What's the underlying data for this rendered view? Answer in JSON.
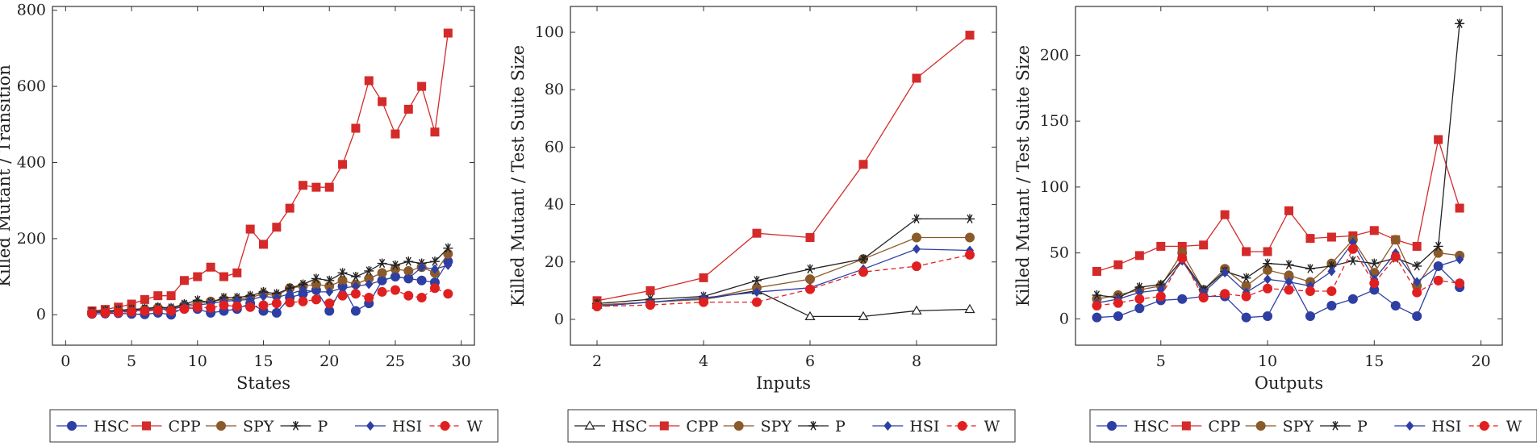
{
  "chart_data": [
    {
      "type": "line",
      "xlabel": "States",
      "ylabel": "Killed Mutant / Transition",
      "xlim": [
        -1,
        31
      ],
      "ylim": [
        -80,
        810
      ],
      "xticks": [
        0,
        5,
        10,
        15,
        20,
        25,
        30
      ],
      "yticks": [
        0,
        200,
        400,
        600,
        800
      ],
      "legend_position": "bottom",
      "series": [
        {
          "name": "HSC",
          "color": "#2E3FA3",
          "marker": "circle",
          "dash": "solid",
          "x": [
            2,
            3,
            4,
            5,
            6,
            7,
            8,
            9,
            10,
            11,
            12,
            13,
            14,
            15,
            16,
            17,
            18,
            19,
            20,
            21,
            22,
            23,
            24,
            25,
            26,
            27,
            28,
            29
          ],
          "y": [
            2,
            3,
            4,
            2,
            1,
            5,
            0,
            20,
            15,
            5,
            10,
            15,
            30,
            10,
            5,
            45,
            55,
            65,
            10,
            75,
            10,
            30,
            90,
            100,
            95,
            90,
            85,
            140
          ]
        },
        {
          "name": "CPP",
          "color": "#D42A2A",
          "marker": "square",
          "dash": "solid",
          "x": [
            2,
            3,
            4,
            5,
            6,
            7,
            8,
            9,
            10,
            11,
            12,
            13,
            14,
            15,
            16,
            17,
            18,
            19,
            20,
            21,
            22,
            23,
            24,
            25,
            26,
            27,
            28,
            29
          ],
          "y": [
            10,
            14,
            20,
            28,
            40,
            50,
            50,
            90,
            100,
            125,
            100,
            110,
            225,
            185,
            230,
            280,
            340,
            335,
            335,
            395,
            490,
            615,
            560,
            475,
            540,
            600,
            480,
            740
          ]
        },
        {
          "name": "SPY",
          "color": "#8B5A2B",
          "marker": "circle",
          "dash": "solid",
          "x": [
            2,
            3,
            4,
            5,
            6,
            7,
            8,
            9,
            10,
            11,
            12,
            13,
            14,
            15,
            16,
            17,
            18,
            19,
            20,
            21,
            22,
            23,
            24,
            25,
            26,
            27,
            28,
            29
          ],
          "y": [
            5,
            8,
            10,
            12,
            14,
            18,
            15,
            25,
            30,
            35,
            40,
            40,
            45,
            55,
            50,
            70,
            75,
            80,
            75,
            90,
            80,
            95,
            110,
            120,
            115,
            125,
            110,
            160
          ]
        },
        {
          "name": "P",
          "color": "#222222",
          "marker": "star",
          "dash": "solid",
          "x": [
            2,
            3,
            4,
            5,
            6,
            7,
            8,
            9,
            10,
            11,
            12,
            13,
            14,
            15,
            16,
            17,
            18,
            19,
            20,
            21,
            22,
            23,
            24,
            25,
            26,
            27,
            28,
            29
          ],
          "y": [
            8,
            10,
            12,
            14,
            16,
            20,
            18,
            28,
            38,
            32,
            45,
            45,
            50,
            60,
            55,
            70,
            80,
            95,
            90,
            110,
            100,
            115,
            135,
            130,
            140,
            135,
            140,
            175
          ]
        },
        {
          "name": "HSI",
          "color": "#2E3FA3",
          "marker": "diamond",
          "dash": "solid",
          "x": [
            2,
            3,
            4,
            5,
            6,
            7,
            8,
            9,
            10,
            11,
            12,
            13,
            14,
            15,
            16,
            17,
            18,
            19,
            20,
            21,
            22,
            23,
            24,
            25,
            26,
            27,
            28,
            29
          ],
          "y": [
            5,
            7,
            8,
            10,
            12,
            15,
            14,
            22,
            25,
            30,
            35,
            38,
            40,
            48,
            45,
            55,
            65,
            60,
            60,
            70,
            75,
            80,
            90,
            100,
            95,
            125,
            120,
            130
          ]
        },
        {
          "name": "W",
          "color": "#E02020",
          "marker": "circle",
          "dash": "dashed",
          "x": [
            2,
            3,
            4,
            5,
            6,
            7,
            8,
            9,
            10,
            11,
            12,
            13,
            14,
            15,
            16,
            17,
            18,
            19,
            20,
            21,
            22,
            23,
            24,
            25,
            26,
            27,
            28,
            29
          ],
          "y": [
            3,
            5,
            6,
            8,
            10,
            12,
            10,
            15,
            20,
            18,
            25,
            22,
            20,
            25,
            30,
            32,
            35,
            40,
            30,
            50,
            55,
            45,
            60,
            65,
            50,
            45,
            70,
            55
          ]
        }
      ]
    },
    {
      "type": "line",
      "xlabel": "Inputs",
      "ylabel": "Killed Mutant / Test Suite Size",
      "xlim": [
        1.5,
        9.5
      ],
      "ylim": [
        -9,
        109
      ],
      "xticks": [
        2,
        4,
        6,
        8
      ],
      "yticks": [
        0,
        20,
        40,
        60,
        80,
        100
      ],
      "legend_position": "bottom",
      "series": [
        {
          "name": "HSC",
          "color": "#222222",
          "marker": "triangle",
          "dash": "solid",
          "x": [
            2,
            3,
            4,
            5,
            6,
            7,
            8,
            9
          ],
          "y": [
            5,
            6,
            7,
            10,
            1,
            1,
            3,
            3.5
          ]
        },
        {
          "name": "CPP",
          "color": "#D42A2A",
          "marker": "square",
          "dash": "solid",
          "x": [
            2,
            3,
            4,
            5,
            6,
            7,
            8,
            9
          ],
          "y": [
            6.5,
            10,
            14.5,
            30,
            28.5,
            54,
            84,
            99
          ]
        },
        {
          "name": "SPY",
          "color": "#8B5A2B",
          "marker": "circle",
          "dash": "solid",
          "x": [
            2,
            3,
            4,
            5,
            6,
            7,
            8,
            9
          ],
          "y": [
            5,
            6,
            7,
            11,
            14,
            21,
            28.5,
            28.5
          ]
        },
        {
          "name": "P",
          "color": "#222222",
          "marker": "star",
          "dash": "solid",
          "x": [
            2,
            3,
            4,
            5,
            6,
            7,
            8,
            9
          ],
          "y": [
            5.5,
            7,
            8,
            13.5,
            17.5,
            21,
            35,
            35
          ]
        },
        {
          "name": "HSI",
          "color": "#2E3FA3",
          "marker": "diamond",
          "dash": "solid",
          "x": [
            2,
            3,
            4,
            5,
            6,
            7,
            8,
            9
          ],
          "y": [
            4.5,
            6,
            7.5,
            9.5,
            11,
            17.5,
            24.5,
            24
          ]
        },
        {
          "name": "W",
          "color": "#E02020",
          "marker": "circle",
          "dash": "dashed",
          "x": [
            2,
            3,
            4,
            5,
            6,
            7,
            8,
            9
          ],
          "y": [
            4.5,
            5,
            6,
            6,
            10.5,
            16.5,
            18.5,
            22.5
          ]
        }
      ]
    },
    {
      "type": "line",
      "xlabel": "Outputs",
      "ylabel": "Killed Mutant / Test Suite Size",
      "xlim": [
        1,
        21
      ],
      "ylim": [
        -20,
        237
      ],
      "xticks": [
        5,
        10,
        15,
        20
      ],
      "yticks": [
        0,
        50,
        100,
        150,
        200
      ],
      "legend_position": "bottom",
      "series": [
        {
          "name": "HSC",
          "color": "#2E3FA3",
          "marker": "circle",
          "dash": "solid",
          "x": [
            2,
            3,
            4,
            5,
            6,
            7,
            8,
            9,
            10,
            11,
            12,
            13,
            14,
            15,
            16,
            17,
            18,
            19
          ],
          "y": [
            1,
            2,
            8,
            14,
            15,
            17,
            17,
            1,
            2,
            32,
            2,
            10,
            15,
            22,
            10,
            2,
            40,
            24
          ]
        },
        {
          "name": "CPP",
          "color": "#D42A2A",
          "marker": "square",
          "dash": "solid",
          "x": [
            2,
            3,
            4,
            5,
            6,
            7,
            8,
            9,
            10,
            11,
            12,
            13,
            14,
            15,
            16,
            17,
            18,
            19
          ],
          "y": [
            36,
            41,
            48,
            55,
            55,
            56,
            79,
            51,
            51,
            82,
            61,
            62,
            63,
            67,
            60,
            55,
            136,
            84
          ]
        },
        {
          "name": "SPY",
          "color": "#8B5A2B",
          "marker": "circle",
          "dash": "solid",
          "x": [
            2,
            3,
            4,
            5,
            6,
            7,
            8,
            9,
            10,
            11,
            12,
            13,
            14,
            15,
            16,
            17,
            18,
            19
          ],
          "y": [
            15,
            18,
            22,
            25,
            50,
            22,
            38,
            25,
            37,
            33,
            28,
            42,
            60,
            35,
            60,
            25,
            50,
            48
          ]
        },
        {
          "name": "P",
          "color": "#222222",
          "marker": "star",
          "dash": "solid",
          "x": [
            2,
            3,
            4,
            5,
            6,
            7,
            8,
            9,
            10,
            11,
            12,
            13,
            14,
            15,
            16,
            17,
            18,
            19
          ],
          "y": [
            18,
            16,
            24,
            26,
            45,
            22,
            36,
            31,
            42,
            41,
            38,
            40,
            44,
            42,
            46,
            40,
            55,
            224
          ]
        },
        {
          "name": "HSI",
          "color": "#2E3FA3",
          "marker": "diamond",
          "dash": "solid",
          "x": [
            2,
            3,
            4,
            5,
            6,
            7,
            8,
            9,
            10,
            11,
            12,
            13,
            14,
            15,
            16,
            17,
            18,
            19
          ],
          "y": [
            12,
            15,
            20,
            22,
            44,
            20,
            35,
            20,
            30,
            28,
            25,
            36,
            58,
            30,
            50,
            28,
            40,
            45
          ]
        },
        {
          "name": "W",
          "color": "#E02020",
          "marker": "circle",
          "dash": "dashed",
          "x": [
            2,
            3,
            4,
            5,
            6,
            7,
            8,
            9,
            10,
            11,
            12,
            13,
            14,
            15,
            16,
            17,
            18,
            19
          ],
          "y": [
            10,
            12,
            15,
            17,
            46,
            16,
            19,
            17,
            23,
            22,
            21,
            21,
            53,
            27,
            47,
            20,
            29,
            27
          ]
        }
      ]
    }
  ]
}
